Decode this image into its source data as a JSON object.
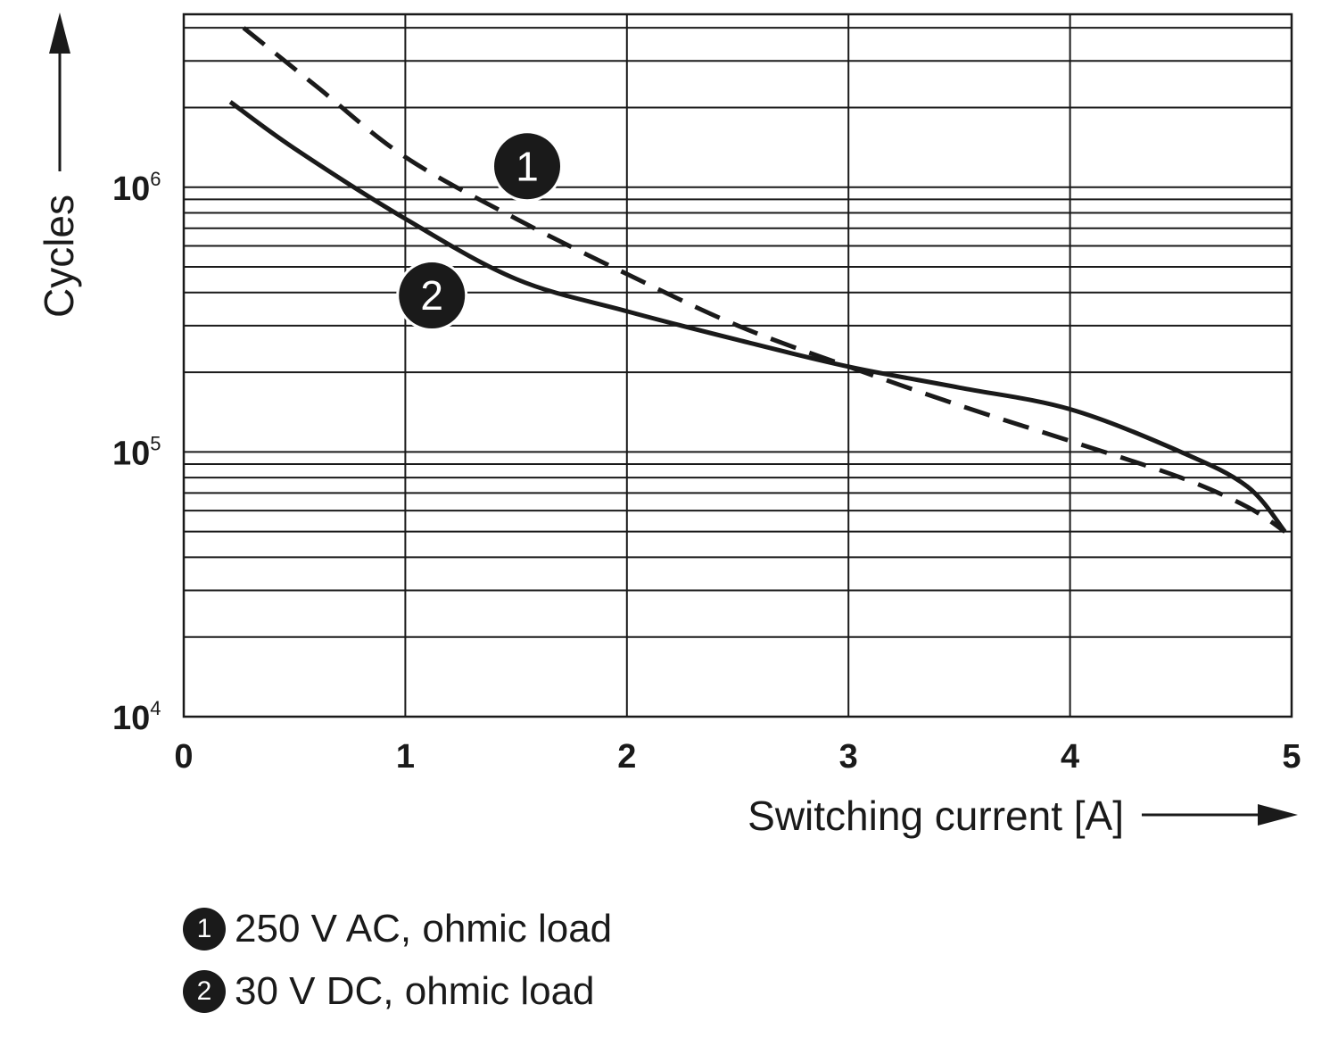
{
  "chart_data": {
    "type": "line",
    "xlabel": "Switching current [A]",
    "ylabel": "Cycles",
    "xlim": [
      0,
      5
    ],
    "ylim": [
      10000,
      4500000
    ],
    "y_scale": "log",
    "grid": true,
    "x_ticks": [
      "0",
      "1",
      "2",
      "3",
      "4",
      "5"
    ],
    "y_ticks": [
      {
        "base": "10",
        "exp": "4",
        "value": 10000
      },
      {
        "base": "10",
        "exp": "5",
        "value": 100000
      },
      {
        "base": "10",
        "exp": "6",
        "value": 1000000
      }
    ],
    "series": [
      {
        "marker": "1",
        "style": "dashed",
        "x": [
          0.27,
          0.6,
          1.0,
          1.5,
          2.0,
          2.5,
          3.0,
          3.5,
          4.0,
          4.5,
          4.8,
          4.97
        ],
        "y": [
          4000000,
          2400000,
          1300000,
          760000,
          470000,
          300000,
          210000,
          150000,
          110000,
          80000,
          62000,
          50000
        ]
      },
      {
        "marker": "2",
        "style": "solid",
        "x": [
          0.21,
          0.5,
          1.0,
          1.5,
          2.0,
          2.5,
          3.0,
          3.5,
          4.0,
          4.5,
          4.8,
          4.97
        ],
        "y": [
          2100000,
          1400000,
          760000,
          450000,
          340000,
          265000,
          210000,
          175000,
          145000,
          100000,
          74000,
          50000
        ]
      }
    ]
  },
  "legend": [
    {
      "marker": "1",
      "label": "250 V AC, ohmic load"
    },
    {
      "marker": "2",
      "label": "30 V DC, ohmic load"
    }
  ],
  "colors": {
    "ink": "#1a1a1a",
    "background": "#ffffff"
  }
}
